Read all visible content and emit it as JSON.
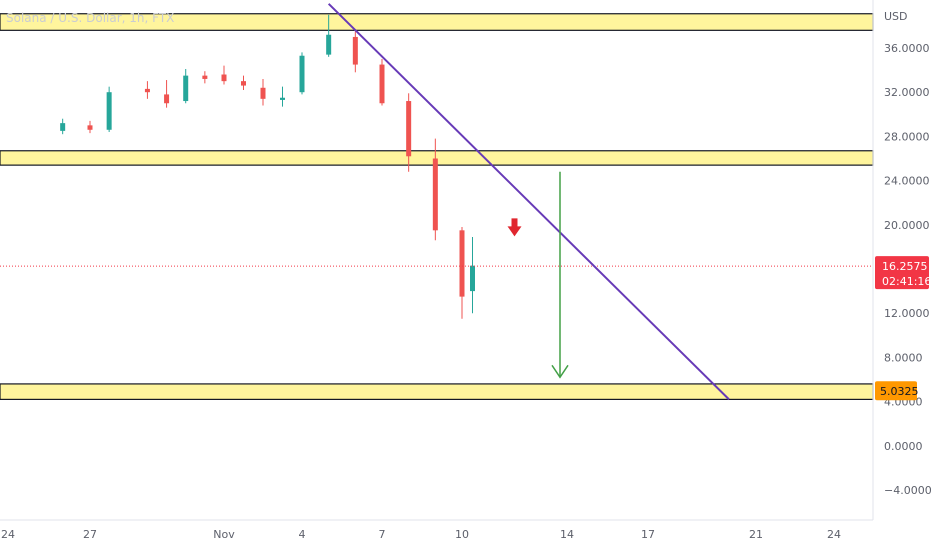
{
  "chart_data": {
    "type": "candlestick",
    "title": "Solana / U.S. Dollar, 1h, FTX",
    "currency_label": "USD",
    "y_ticks": [
      "36.0000",
      "32.0000",
      "28.0000",
      "24.0000",
      "20.0000",
      "16.0000",
      "12.0000",
      "8.0000",
      "4.0000",
      "0.0000",
      "−4.0000"
    ],
    "y_tick_values": [
      36,
      32,
      28,
      24,
      20,
      16,
      12,
      8,
      4,
      0,
      -4
    ],
    "x_ticks": [
      "24",
      "27",
      "Nov",
      "4",
      "7",
      "10",
      "14",
      "17",
      "21",
      "24"
    ],
    "ylim": [
      -5.5,
      39.5
    ],
    "current_price": {
      "label": "16.2575",
      "value": 16.2575,
      "countdown": "02:41:16",
      "color": "#f23645"
    },
    "target_price": {
      "label": "5.0325",
      "value": 5.0325,
      "color": "#ff9800"
    },
    "zones": [
      {
        "top": 39.1,
        "bottom": 37.6,
        "color": "#fff59d"
      },
      {
        "top": 26.7,
        "bottom": 25.4,
        "color": "#fff59d"
      },
      {
        "top": 5.6,
        "bottom": 4.2,
        "color": "#fff59d"
      }
    ],
    "trendline": {
      "start": {
        "x": "Nov 5",
        "y": 40.0
      },
      "end": {
        "x": "Nov 20",
        "y": 4.2
      },
      "color": "#673ab7"
    },
    "arrow_down_red": {
      "x": "Nov 12",
      "y": 19.5,
      "color": "#e0262f"
    },
    "target_arrow_green": {
      "x": "Nov 14",
      "from": 24.8,
      "to": 6.2,
      "color": "#43a047"
    },
    "colors": {
      "up": "#26a69a",
      "down": "#ef5350"
    },
    "candles_sample": [
      {
        "date": "Oct 23",
        "open": 28.5,
        "high": 29.6,
        "low": 28.2,
        "close": 29.2
      },
      {
        "date": "Oct 24",
        "open": 29.0,
        "high": 29.4,
        "low": 28.3,
        "close": 28.6
      },
      {
        "date": "Oct 25",
        "open": 28.6,
        "high": 32.5,
        "low": 28.4,
        "close": 32.0
      },
      {
        "date": "Oct 27",
        "open": 32.3,
        "high": 33.0,
        "low": 31.4,
        "close": 32.0
      },
      {
        "date": "Oct 28",
        "open": 31.8,
        "high": 33.1,
        "low": 30.6,
        "close": 31.0
      },
      {
        "date": "Oct 29",
        "open": 31.2,
        "high": 34.1,
        "low": 31.0,
        "close": 33.5
      },
      {
        "date": "Oct 30",
        "open": 33.5,
        "high": 33.9,
        "low": 32.8,
        "close": 33.2
      },
      {
        "date": "Oct 31",
        "open": 33.6,
        "high": 34.4,
        "low": 32.7,
        "close": 33.0
      },
      {
        "date": "Nov 1",
        "open": 33.0,
        "high": 33.5,
        "low": 32.2,
        "close": 32.6
      },
      {
        "date": "Nov 2",
        "open": 32.4,
        "high": 33.2,
        "low": 30.8,
        "close": 31.4
      },
      {
        "date": "Nov 3",
        "open": 31.3,
        "high": 32.5,
        "low": 30.7,
        "close": 31.5
      },
      {
        "date": "Nov 4",
        "open": 32.0,
        "high": 35.6,
        "low": 31.8,
        "close": 35.3
      },
      {
        "date": "Nov 5",
        "open": 35.4,
        "high": 39.0,
        "low": 35.2,
        "close": 37.2
      },
      {
        "date": "Nov 6",
        "open": 37.0,
        "high": 37.5,
        "low": 33.8,
        "close": 34.5
      },
      {
        "date": "Nov 7",
        "open": 34.5,
        "high": 35.0,
        "low": 30.8,
        "close": 31.0
      },
      {
        "date": "Nov 8",
        "open": 31.2,
        "high": 31.9,
        "low": 24.8,
        "close": 26.2
      },
      {
        "date": "Nov 9",
        "open": 26.0,
        "high": 27.8,
        "low": 18.6,
        "close": 19.5
      },
      {
        "date": "Nov 10",
        "open": 19.5,
        "high": 19.8,
        "low": 11.5,
        "close": 13.5
      },
      {
        "date": "Nov 10b",
        "open": 14.0,
        "high": 18.9,
        "low": 12.0,
        "close": 16.3
      }
    ]
  }
}
